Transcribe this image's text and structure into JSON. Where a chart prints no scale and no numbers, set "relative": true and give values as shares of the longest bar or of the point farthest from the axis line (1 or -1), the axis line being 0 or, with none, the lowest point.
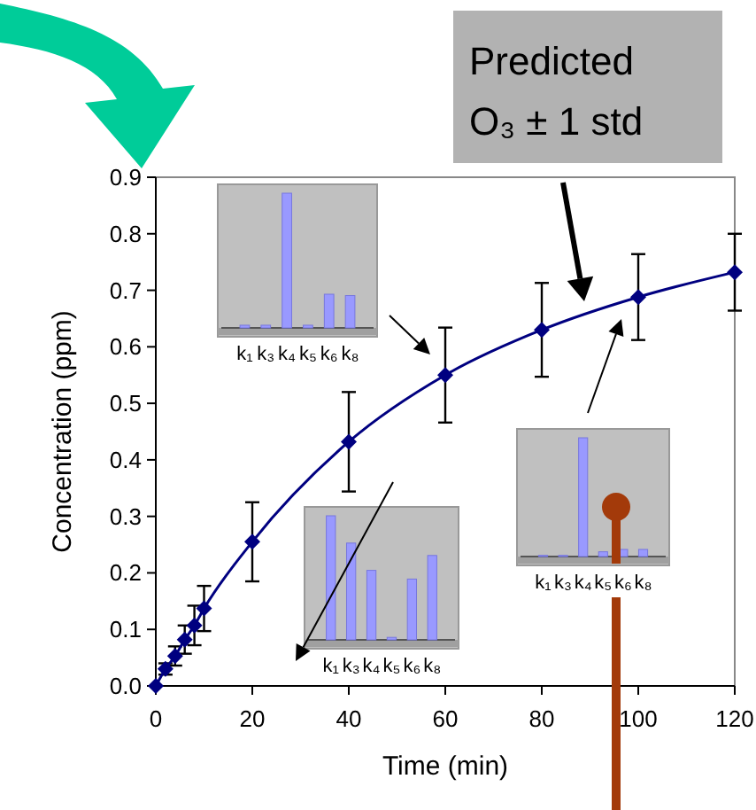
{
  "chart_data": [
    {
      "type": "line",
      "xlabel": "Time (min)",
      "ylabel": "Concentration (ppm)",
      "x": [
        0,
        2,
        4,
        6,
        8,
        10,
        20,
        40,
        60,
        80,
        100,
        120
      ],
      "series": [
        {
          "color": "#000080",
          "values": [
            0,
            0.03,
            0.053,
            0.082,
            0.107,
            0.137,
            0.255,
            0.432,
            0.55,
            0.63,
            0.688,
            0.732
          ],
          "errors": [
            null,
            0.01,
            0.017,
            0.025,
            0.035,
            0.04,
            0.07,
            0.088,
            0.084,
            0.083,
            0.076,
            0.068
          ]
        }
      ],
      "xlim": [
        0,
        120
      ],
      "xticks": [
        0,
        20,
        40,
        60,
        80,
        100,
        120
      ],
      "ylim": [
        0,
        0.9
      ],
      "yticks": [
        {
          "value": 0,
          "label": "0.0"
        },
        {
          "value": 0.1,
          "label": "0.1"
        },
        {
          "value": 0.2,
          "label": "0.2"
        },
        {
          "value": 0.3,
          "label": "0.3"
        },
        {
          "value": 0.4,
          "label": "0.4"
        },
        {
          "value": 0.5,
          "label": "0.5"
        },
        {
          "value": 0.6,
          "label": "0.6"
        },
        {
          "value": 0.7,
          "label": "0.7"
        },
        {
          "value": 0.8,
          "label": "0.8"
        },
        {
          "value": 0.9,
          "label": "0.9"
        }
      ],
      "marker": "diamond",
      "line_style": "solid",
      "grid": false,
      "annotations": [
        "Predicted O₃ ± 1 std"
      ]
    },
    {
      "type": "bar",
      "relative": true,
      "categories": [
        "k₁",
        "k₃",
        "k₄",
        "k₅",
        "k₆",
        "k₈"
      ],
      "values": [
        0.02,
        0.02,
        1,
        0.02,
        0.25,
        0.24
      ],
      "color": "#9999ff"
    },
    {
      "type": "bar",
      "relative": true,
      "categories": [
        "k₁",
        "k₃",
        "k₄",
        "k₅",
        "k₆",
        "k₈"
      ],
      "values": [
        1,
        0.78,
        0.56,
        0.02,
        0.49,
        0.68
      ],
      "color": "#9999ff"
    },
    {
      "type": "bar",
      "relative": true,
      "categories": [
        "k₁",
        "k₃",
        "k₄",
        "k₅",
        "k₆",
        "k₈"
      ],
      "values": [
        0.01,
        0.01,
        1,
        0.04,
        0.06,
        0.06
      ],
      "color": "#9999ff"
    }
  ]
}
